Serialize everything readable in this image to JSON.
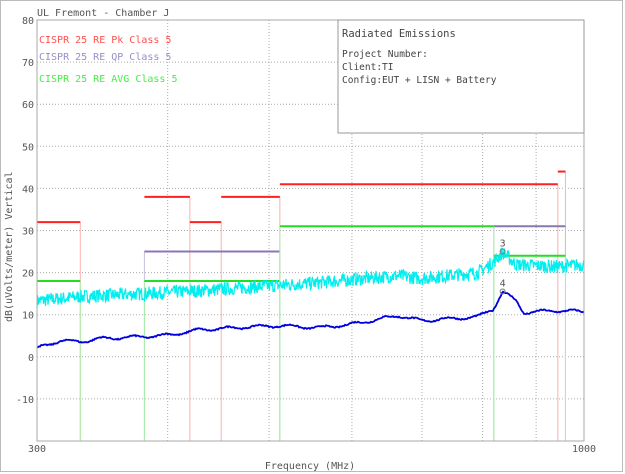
{
  "chart_data": {
    "type": "line",
    "title": "UL Fremont - Chamber J",
    "xlabel": "Frequency (MHz)",
    "ylabel": "dB(uVolts/meter) Vertical",
    "x_scale": "log",
    "xlim": [
      300,
      1000
    ],
    "ylim": [
      -20,
      80
    ],
    "x_tick_labels": [
      "300",
      "1000"
    ],
    "x_minor_grid": [
      400,
      500,
      600,
      700,
      800,
      900
    ],
    "y_ticks": [
      80,
      70,
      60,
      50,
      40,
      30,
      20,
      10,
      0,
      -10
    ],
    "y_tick_labels": [
      "80",
      "70",
      "60",
      "50",
      "40",
      "30",
      "20",
      "10",
      "0",
      "-10"
    ],
    "grid": true,
    "legend_placement": "top-left",
    "info_box": {
      "title": "Radiated Emissions",
      "lines": [
        "Project Number:",
        "Client:TI",
        "Config:EUT + LISN + Battery"
      ]
    },
    "limits": [
      {
        "name": "CISPR 25 RE Pk Class 5",
        "color": "#ff2020",
        "segments": [
          [
            300,
            330,
            32
          ],
          [
            380,
            420,
            38
          ],
          [
            420,
            450,
            32
          ],
          [
            450,
            512,
            38
          ],
          [
            512,
            944,
            41
          ],
          [
            944,
            960,
            44
          ]
        ]
      },
      {
        "name": "CISPR 25 RE QP Class 5",
        "color": "#8878b0",
        "segments": [
          [
            380,
            512,
            25
          ],
          [
            820,
            960,
            31
          ]
        ]
      },
      {
        "name": "CISPR 25 RE AVG Class 5",
        "color": "#22dd22",
        "segments": [
          [
            300,
            330,
            18
          ],
          [
            380,
            512,
            18
          ],
          [
            512,
            820,
            31
          ],
          [
            820,
            960,
            24
          ]
        ]
      }
    ],
    "series": [
      {
        "color": "#00eeee",
        "x": [
          300,
          330,
          380,
          429,
          511,
          557,
          665,
          697,
          792,
          819,
          836,
          861,
          942,
          1000
        ],
        "y": [
          13.3,
          14.3,
          15,
          15.7,
          17,
          17.6,
          19.3,
          18.6,
          20,
          22.4,
          24.8,
          21.9,
          21.4,
          21.9
        ]
      },
      {
        "color": "#0000dd",
        "x": [
          300,
          315,
          330,
          344,
          380,
          402,
          429,
          478,
          511,
          557,
          595,
          665,
          697,
          741,
          792,
          819,
          836,
          861,
          876,
          942,
          1000
        ],
        "y": [
          2,
          3.8,
          3.6,
          4.3,
          4.8,
          5.2,
          6.4,
          7.1,
          7.4,
          6.9,
          7.6,
          9.8,
          8.6,
          9,
          9.5,
          11.4,
          15.5,
          13.3,
          10.5,
          11,
          10.7
        ]
      }
    ],
    "markers": [
      {
        "label": "3",
        "x": 836,
        "y": 25
      },
      {
        "label": "4",
        "x": 836,
        "y": 15.5
      }
    ]
  }
}
